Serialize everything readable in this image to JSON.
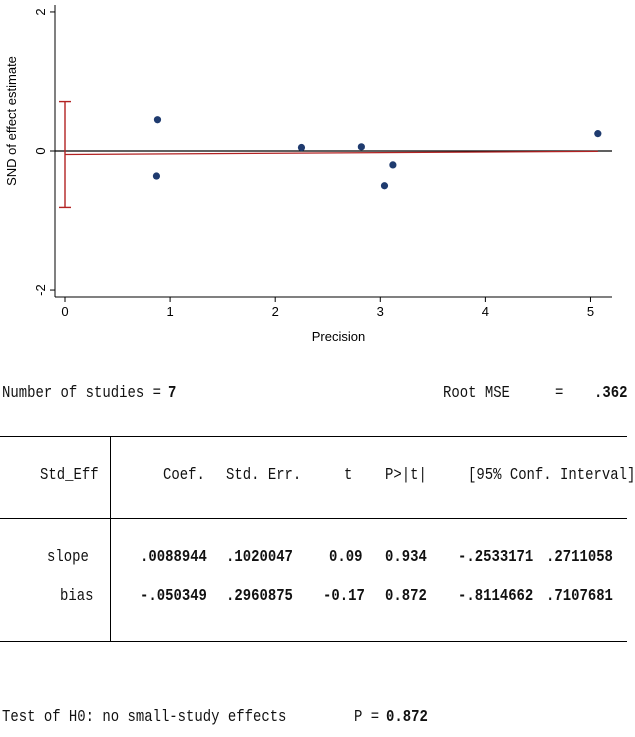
{
  "chart_data": {
    "type": "scatter",
    "title": "",
    "xlabel": "Precision",
    "ylabel": "SND of effect estimate",
    "xlim": [
      0,
      5.3
    ],
    "ylim": [
      -2.1,
      2.1
    ],
    "x_ticks": [
      "0",
      "1",
      "2",
      "3",
      "4",
      "5"
    ],
    "y_ticks": [
      "-2",
      "0",
      "2"
    ],
    "points": [
      {
        "x": 0.88,
        "y": 0.45
      },
      {
        "x": 0.87,
        "y": -0.36
      },
      {
        "x": 2.25,
        "y": 0.05
      },
      {
        "x": 2.82,
        "y": 0.06
      },
      {
        "x": 3.04,
        "y": -0.5
      },
      {
        "x": 3.12,
        "y": -0.2
      },
      {
        "x": 5.07,
        "y": 0.25
      }
    ],
    "fit_line": {
      "slope": 0.0088944,
      "intercept": -0.050349
    },
    "intercept_ci": [
      -0.8114662,
      0.7107681
    ],
    "colors": {
      "points": "#1f3b6f",
      "fit": "#b22222",
      "ci": "#b22222",
      "zero_line": "#000000"
    }
  },
  "summary": {
    "n_label": "Number of studies =",
    "n_value": "7",
    "rmse_label": "Root MSE",
    "rmse_eq": "=",
    "rmse_value": ".362"
  },
  "table": {
    "headers": [
      "Std_Eff",
      "Coef.",
      "Std. Err.",
      "t",
      "P>|t|",
      "[95% Conf. Interval]"
    ],
    "rows": [
      {
        "name": "slope",
        "coef": ".0088944",
        "se": ".1020047",
        "t": "0.09",
        "p": "0.934",
        "lo": "-.2533171",
        "hi": ".2711058"
      },
      {
        "name": "bias",
        "coef": "-.050349",
        "se": ".2960875",
        "t": "-0.17",
        "p": "0.872",
        "lo": "-.8114662",
        "hi": ".7107681"
      }
    ]
  },
  "test": {
    "label": "Test of H0: no small-study effects",
    "p_label": "P =",
    "p_value": "0.872"
  }
}
